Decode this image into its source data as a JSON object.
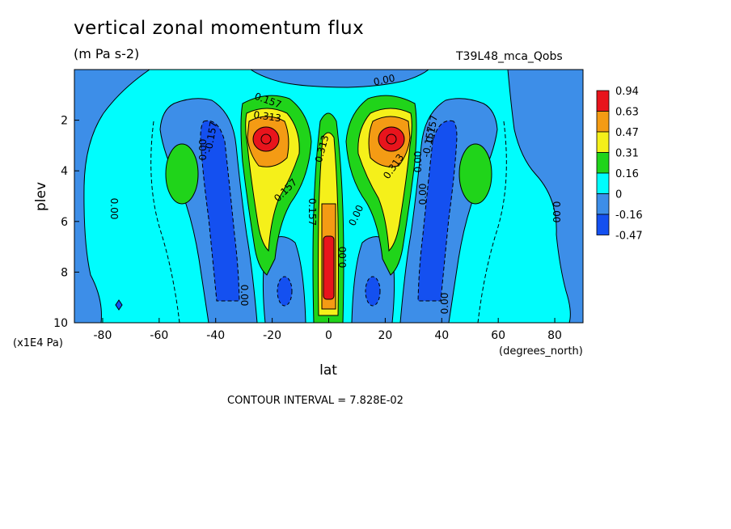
{
  "chart_data": {
    "type": "heatmap",
    "title": "vertical zonal momentum flux",
    "units": "(m Pa s-2)",
    "run_label": "T39L48_mca_Qobs",
    "xlabel": "lat",
    "x_units": "(degrees_north)",
    "ylabel": "plev",
    "y_units": "(x1E4 Pa)",
    "xlim": [
      -90,
      90
    ],
    "ylim": [
      10,
      0
    ],
    "x_ticks": [
      -80,
      -60,
      -40,
      -20,
      0,
      20,
      40,
      60,
      80
    ],
    "y_ticks": [
      2,
      4,
      6,
      8,
      10
    ],
    "contour_interval_text": "CONTOUR INTERVAL = 7.828E-02",
    "legend": {
      "labels": [
        "0.94",
        "0.63",
        "0.47",
        "0.31",
        "0.16",
        "0",
        "-0.16",
        "-0.47"
      ],
      "colors": [
        "#e8141c",
        "#f49b14",
        "#f5f01a",
        "#20d41a",
        "#00fdfd",
        "#3d8ee8",
        "#1450f0"
      ]
    },
    "contour_labels": [
      "0.00",
      "0.157",
      "0.313",
      "-0.157",
      "0.313",
      "0.00",
      "0.157",
      "0.313",
      "-0.157",
      "0.00",
      "0.00",
      "0.157",
      "0.00",
      "0.00",
      "0.157",
      "0.00",
      "0.00",
      "0.00"
    ],
    "fields": [
      {
        "name": "negative-band-left",
        "lat": -37,
        "plev": 5.5,
        "value": -0.3
      },
      {
        "name": "negative-band-right",
        "lat": 37,
        "plev": 5.5,
        "value": -0.3
      },
      {
        "name": "positive-max-left",
        "lat": -20,
        "plev": 2.9,
        "value": 0.94
      },
      {
        "name": "positive-max-right",
        "lat": 20,
        "plev": 2.9,
        "value": 0.94
      },
      {
        "name": "equatorial-max",
        "lat": 0,
        "plev": 7.5,
        "value": 0.94
      },
      {
        "name": "green-lobe-left",
        "lat": -50,
        "plev": 4.0,
        "value": 0.2
      },
      {
        "name": "green-lobe-right",
        "lat": 50,
        "plev": 4.0,
        "value": 0.2
      }
    ]
  }
}
